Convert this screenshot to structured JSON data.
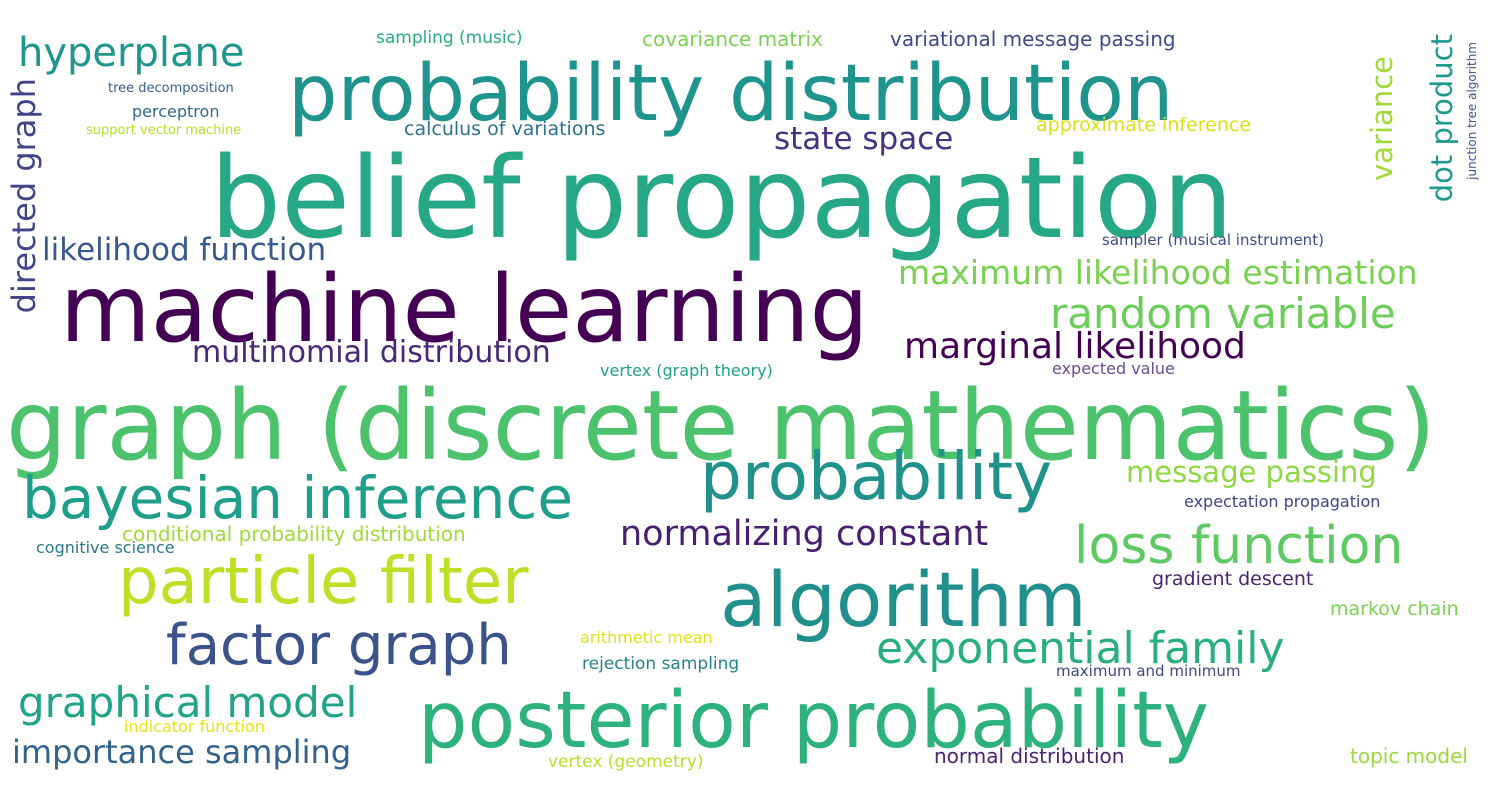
{
  "words": [
    {
      "id": "belief-propagation",
      "text": "belief propagation",
      "color": "#26a884"
    },
    {
      "id": "graph-discrete-mathematics",
      "text": "graph (discrete mathematics)",
      "color": "#4cc26c"
    },
    {
      "id": "machine-learning",
      "text": "machine learning",
      "color": "#440154"
    },
    {
      "id": "probability-distribution",
      "text": "probability distribution",
      "color": "#1f948c"
    },
    {
      "id": "algorithm",
      "text": "algorithm",
      "color": "#21908d"
    },
    {
      "id": "posterior-probability",
      "text": "posterior probability",
      "color": "#2db27d"
    },
    {
      "id": "probability",
      "text": "probability",
      "color": "#21918c"
    },
    {
      "id": "bayesian-inference",
      "text": "bayesian inference",
      "color": "#1f9e89"
    },
    {
      "id": "particle-filter",
      "text": "particle filter",
      "color": "#bddf26"
    },
    {
      "id": "factor-graph",
      "text": "factor graph",
      "color": "#3b528b"
    },
    {
      "id": "loss-function",
      "text": "loss function",
      "color": "#5ec962"
    },
    {
      "id": "random-variable",
      "text": "random variable",
      "color": "#6ccd5a"
    },
    {
      "id": "marginal-likelihood",
      "text": "marginal likelihood",
      "color": "#440154"
    },
    {
      "id": "exponential-family",
      "text": "exponential family",
      "color": "#29af7f"
    },
    {
      "id": "graphical-model",
      "text": "graphical model",
      "color": "#20a386"
    },
    {
      "id": "hyperplane",
      "text": "hyperplane",
      "color": "#1f968b"
    },
    {
      "id": "maximum-likelihood-estimation",
      "text": "maximum likelihood estimation",
      "color": "#7ad151"
    },
    {
      "id": "multinomial-distribution",
      "text": "multinomial distribution",
      "color": "#482878"
    },
    {
      "id": "normalizing-constant",
      "text": "normalizing constant",
      "color": "#481f70"
    },
    {
      "id": "likelihood-function",
      "text": "likelihood function",
      "color": "#38598c"
    },
    {
      "id": "importance-sampling",
      "text": "importance sampling",
      "color": "#33638d"
    },
    {
      "id": "message-passing",
      "text": "message passing",
      "color": "#8fd744"
    },
    {
      "id": "state-space",
      "text": "state space",
      "color": "#46327e"
    },
    {
      "id": "directed-graph",
      "text": "directed graph",
      "color": "#414487"
    },
    {
      "id": "dot-product",
      "text": "dot product",
      "color": "#1f9a8a"
    },
    {
      "id": "variance",
      "text": "variance",
      "color": "#a0da39"
    },
    {
      "id": "covariance-matrix",
      "text": "covariance matrix",
      "color": "#7ad151"
    },
    {
      "id": "variational-message-passing",
      "text": "variational message passing",
      "color": "#3e4a89"
    },
    {
      "id": "sampling-music",
      "text": "sampling (music)",
      "color": "#25ab82"
    },
    {
      "id": "calculus-of-variations",
      "text": "calculus of variations",
      "color": "#2c728e"
    },
    {
      "id": "approximate-inference",
      "text": "approximate inference",
      "color": "#d8e219"
    },
    {
      "id": "tree-decomposition",
      "text": "tree decomposition",
      "color": "#355f8d"
    },
    {
      "id": "perceptron",
      "text": "perceptron",
      "color": "#31688e"
    },
    {
      "id": "support-vector-machine",
      "text": "support vector machine",
      "color": "#b5de2b"
    },
    {
      "id": "sampler-musical-instrument",
      "text": "sampler (musical instrument)",
      "color": "#3e4c8a"
    },
    {
      "id": "junction-tree-algorithm",
      "text": "junction tree algorithm",
      "color": "#3b528b"
    },
    {
      "id": "vertex-graph-theory",
      "text": "vertex (graph theory)",
      "color": "#1fa187"
    },
    {
      "id": "expected-value",
      "text": "expected value",
      "color": "#6a4c93"
    },
    {
      "id": "conditional-probability-distribution",
      "text": "conditional probability distribution",
      "color": "#a0da39"
    },
    {
      "id": "cognitive-science",
      "text": "cognitive science",
      "color": "#2a788e"
    },
    {
      "id": "expectation-propagation",
      "text": "expectation propagation",
      "color": "#414487"
    },
    {
      "id": "gradient-descent",
      "text": "gradient descent",
      "color": "#482475"
    },
    {
      "id": "markov-chain",
      "text": "markov chain",
      "color": "#7ad151"
    },
    {
      "id": "arithmetic-mean",
      "text": "arithmetic mean",
      "color": "#dde318"
    },
    {
      "id": "rejection-sampling",
      "text": "rejection sampling",
      "color": "#25838e"
    },
    {
      "id": "maximum-and-minimum",
      "text": "maximum and minimum",
      "color": "#404688"
    },
    {
      "id": "indicator-function",
      "text": "indicator function",
      "color": "#e5e419"
    },
    {
      "id": "normal-distribution",
      "text": "normal distribution",
      "color": "#482475"
    },
    {
      "id": "vertex-geometry",
      "text": "vertex (geometry)",
      "color": "#b8de29"
    },
    {
      "id": "topic-model",
      "text": "topic model",
      "color": "#9bd93c"
    }
  ]
}
